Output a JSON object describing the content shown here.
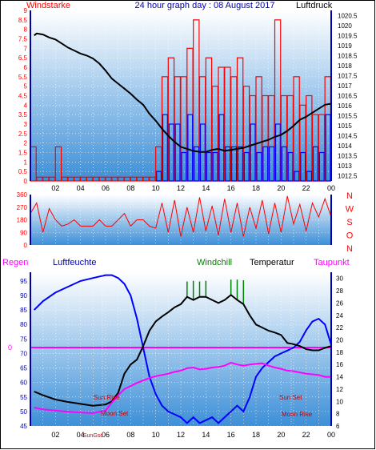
{
  "colors": {
    "wind": "#ff0000",
    "gust_fill": "#ff0000",
    "wind_fill": "#0000ff",
    "pressure": "#000000",
    "direction": "#ff0000",
    "humidity": "#0000ff",
    "temperature": "#000000",
    "dewpoint": "#ff00ff",
    "windchill": "#008000",
    "axis_blue": "#0000aa",
    "bg_top": "#ffffff",
    "bg_bottom": "#3c8fd8"
  },
  "header": {
    "left_label": "Windstarke",
    "title": "24 hour graph day : 08 August 2017",
    "right_label": "Luftdruck"
  },
  "mid_header": {
    "regen": "Regen",
    "luftfeuchte": "Luftfeuchte",
    "windchill": "Windchill",
    "temperatur": "Temperatur",
    "taupunkt": "Taupunkt"
  },
  "astro": {
    "sun_rise": "Sun Rise",
    "moon_set": "Moon Set",
    "sun_set": "Sun Set",
    "moon_rise": "Moon Rise",
    "sun_axis_label": "SunGsc"
  },
  "chart_data": [
    {
      "type": "line",
      "name": "wind_pressure",
      "x_ticks": [
        "02",
        "04",
        "06",
        "08",
        "10",
        "12",
        "14",
        "16",
        "18",
        "20",
        "22",
        "00"
      ],
      "left_axis": {
        "label": "Windstarke",
        "ylim": [
          0,
          9
        ],
        "ticks": [
          "0",
          "0.5",
          "1",
          "1.5",
          "2",
          "2.5",
          "3",
          "3.5",
          "4",
          "4.5",
          "5",
          "5.5",
          "6",
          "6.5",
          "7",
          "7.5",
          "8",
          "8.5",
          "9"
        ]
      },
      "right_axis": {
        "label": "Luftdruck",
        "ylim": [
          1012.25,
          1020.75
        ],
        "ticks": [
          "1012.5",
          "1013",
          "1013.5",
          "1014",
          "1014.5",
          "1015",
          "1015.5",
          "1016",
          "1016.5",
          "1017",
          "1017.5",
          "1018",
          "1018.5",
          "1019",
          "1019.5",
          "1020",
          "1020.5"
        ]
      },
      "pressure": {
        "x": [
          0.3,
          0.5,
          1,
          1.5,
          2,
          2.5,
          3,
          3.5,
          4,
          4.5,
          5,
          5.5,
          6,
          6.5,
          7,
          7.5,
          8,
          8.5,
          9,
          9.5,
          10,
          10.5,
          11,
          11.5,
          12,
          12.5,
          13,
          13.5,
          14,
          14.5,
          15,
          15.5,
          16,
          16.5,
          17,
          17.5,
          18,
          18.5,
          19,
          19.5,
          20,
          20.5,
          21,
          21.5,
          22,
          22.5,
          23,
          23.5,
          24
        ],
        "y": [
          1019.5,
          1019.6,
          1019.55,
          1019.4,
          1019.3,
          1019.1,
          1018.9,
          1018.75,
          1018.6,
          1018.5,
          1018.35,
          1018.1,
          1017.75,
          1017.35,
          1017.1,
          1016.85,
          1016.6,
          1016.3,
          1016.05,
          1015.6,
          1015.25,
          1014.85,
          1014.5,
          1014.2,
          1013.95,
          1013.85,
          1013.75,
          1013.7,
          1013.7,
          1013.8,
          1013.85,
          1013.75,
          1013.8,
          1013.85,
          1013.9,
          1014.0,
          1014.1,
          1014.2,
          1014.3,
          1014.45,
          1014.55,
          1014.75,
          1015.0,
          1015.3,
          1015.45,
          1015.65,
          1015.85,
          1016.05,
          1016.1
        ]
      },
      "wind_gust_blocks": {
        "x": [
          0,
          0.5,
          1,
          1.5,
          2,
          2.5,
          3,
          3.5,
          4,
          4.5,
          5,
          5.5,
          6,
          6.5,
          7,
          7.5,
          8,
          8.5,
          9,
          9.5,
          10,
          10.5,
          11,
          11.5,
          12,
          12.5,
          13,
          13.5,
          14,
          14.5,
          15,
          15.5,
          16,
          16.5,
          17,
          17.5,
          18,
          18.5,
          19,
          19.5,
          20,
          20.5,
          21,
          21.5,
          22,
          22.5,
          23,
          23.5
        ],
        "gust": [
          1.8,
          0.2,
          0.2,
          0.2,
          1.8,
          0.2,
          0.2,
          0.2,
          0.2,
          0.2,
          0.2,
          0.2,
          0.2,
          0.2,
          0.2,
          0.2,
          0.2,
          0.2,
          0.2,
          0.2,
          1.8,
          5.5,
          6.5,
          5.5,
          5.5,
          7.0,
          8.5,
          5.5,
          6.5,
          5.0,
          6.0,
          6.0,
          5.5,
          6.5,
          5.0,
          4.5,
          5.5,
          4.5,
          4.5,
          8.5,
          4.5,
          4.5,
          5.5,
          4.0,
          4.5,
          3.5,
          3.5,
          5.5
        ],
        "avg": [
          0,
          0,
          0,
          0,
          0,
          0,
          0,
          0,
          0,
          0,
          0,
          0,
          0,
          0,
          0,
          0,
          0,
          0,
          0,
          0,
          0.5,
          3.5,
          3.0,
          3.0,
          1.5,
          3.5,
          1.8,
          3.0,
          1.5,
          1.5,
          3.5,
          1.8,
          1.8,
          1.8,
          1.5,
          3.0,
          1.5,
          1.8,
          1.8,
          3.0,
          1.8,
          1.5,
          0.5,
          1.5,
          0.5,
          1.8,
          1.5,
          3.5
        ]
      }
    },
    {
      "type": "line",
      "name": "wind_direction",
      "x_ticks": [
        "02",
        "04",
        "06",
        "08",
        "10",
        "12",
        "14",
        "16",
        "18",
        "20",
        "22",
        "00"
      ],
      "ylim": [
        0,
        360
      ],
      "left_ticks": [
        "0",
        "90",
        "180",
        "270",
        "360"
      ],
      "right_ticks": [
        "N",
        "W",
        "S",
        "O",
        "N"
      ],
      "x": [
        0,
        0.5,
        1,
        1.5,
        2,
        2.5,
        3,
        3.5,
        4,
        4.5,
        5,
        5.5,
        6,
        6.5,
        7,
        7.5,
        8,
        8.5,
        9,
        9.5,
        10,
        10.5,
        11,
        11.5,
        12,
        12.5,
        13,
        13.5,
        14,
        14.5,
        15,
        15.5,
        16,
        16.5,
        17,
        17.5,
        18,
        18.5,
        19,
        19.5,
        20,
        20.5,
        21,
        21.5,
        22,
        22.5,
        23,
        23.5,
        24
      ],
      "y": [
        225,
        300,
        90,
        260,
        180,
        135,
        150,
        180,
        135,
        135,
        135,
        180,
        135,
        135,
        180,
        225,
        135,
        180,
        180,
        135,
        120,
        300,
        90,
        320,
        60,
        270,
        90,
        340,
        100,
        280,
        70,
        330,
        90,
        300,
        60,
        270,
        120,
        320,
        80,
        300,
        90,
        350,
        150,
        290,
        100,
        300,
        200,
        330,
        200
      ]
    },
    {
      "type": "line",
      "name": "temp_humidity",
      "x_ticks": [
        "02",
        "04",
        "06",
        "08",
        "10",
        "12",
        "14",
        "16",
        "18",
        "20",
        "22",
        "00"
      ],
      "left_axis": {
        "label": "Luftfeuchte",
        "ylim": [
          45,
          98
        ],
        "ticks": [
          "45",
          "50",
          "55",
          "60",
          "65",
          "70",
          "75",
          "80",
          "85",
          "90",
          "95"
        ]
      },
      "right_axis": {
        "label": "Temperatur",
        "ylim": [
          6,
          31
        ],
        "ticks": [
          "6",
          "8",
          "10",
          "12",
          "14",
          "16",
          "18",
          "20",
          "22",
          "24",
          "26",
          "28",
          "30"
        ]
      },
      "rain_axis_value": "0",
      "x": [
        0.3,
        1,
        2,
        3,
        4,
        5,
        6,
        6.5,
        7,
        7.5,
        8,
        8.5,
        9,
        9.5,
        10,
        10.5,
        11,
        11.5,
        12,
        12.5,
        13,
        13.5,
        14,
        14.5,
        15,
        15.5,
        16,
        16.5,
        17,
        17.5,
        18,
        18.5,
        19,
        19.5,
        20,
        20.5,
        21,
        21.5,
        22,
        22.5,
        23,
        23.5,
        24
      ],
      "series": [
        {
          "name": "Luftfeuchte",
          "values": [
            85,
            88,
            91,
            93,
            95,
            96,
            97,
            97,
            96,
            94,
            90,
            82,
            72,
            62,
            56,
            52,
            50,
            49,
            48,
            46,
            48,
            46,
            47,
            48,
            46,
            48,
            50,
            52,
            50,
            55,
            62,
            65,
            67,
            69,
            70,
            71,
            72,
            74,
            78,
            81,
            82,
            80,
            73
          ]
        },
        {
          "name": "Temperatur",
          "values": [
            11.6,
            11.0,
            10.3,
            9.9,
            9.6,
            9.3,
            9.5,
            10.0,
            11.4,
            14.5,
            16.0,
            16.8,
            19.0,
            21.5,
            23.0,
            23.8,
            24.5,
            25.3,
            25.8,
            27.0,
            26.5,
            27.0,
            27.0,
            26.5,
            26.0,
            26.5,
            27.3,
            26.5,
            25.8,
            24.0,
            22.5,
            22.0,
            21.5,
            21.2,
            20.8,
            19.5,
            19.3,
            19.0,
            18.5,
            18.3,
            18.3,
            18.7,
            19.0
          ]
        },
        {
          "name": "Taupunkt",
          "values": [
            9.0,
            8.7,
            8.5,
            8.3,
            8.2,
            8.1,
            8.5,
            9.8,
            11.0,
            12.0,
            12.5,
            13.0,
            13.4,
            13.8,
            14.1,
            14.3,
            14.5,
            14.8,
            15.0,
            15.4,
            15.5,
            15.2,
            15.3,
            15.5,
            15.6,
            15.8,
            16.3,
            16.0,
            15.8,
            16.0,
            16.1,
            16.2,
            15.8,
            15.5,
            15.3,
            15.0,
            14.9,
            14.7,
            14.5,
            14.4,
            14.3,
            14.0,
            14.0
          ]
        },
        {
          "name": "Windchill",
          "values": [
            null,
            null,
            null,
            null,
            null,
            null,
            null,
            null,
            null,
            null,
            null,
            null,
            null,
            null,
            null,
            null,
            null,
            null,
            null,
            29.5,
            29.6,
            29.5,
            29.6,
            null,
            null,
            null,
            29.8,
            29.8,
            29.7,
            null,
            null,
            null,
            null,
            null,
            null,
            null,
            null,
            null,
            null,
            null,
            null,
            null,
            null
          ]
        }
      ]
    }
  ]
}
